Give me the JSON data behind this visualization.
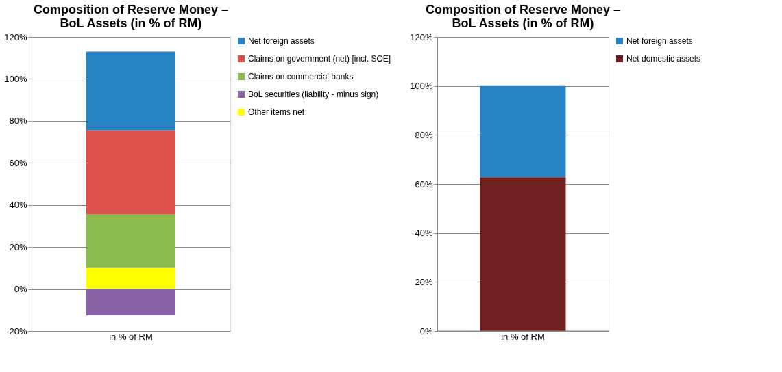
{
  "chart_data": [
    {
      "type": "bar",
      "title": "Composition of Reserve Money –\nBoL Assets (in % of RM)",
      "categories": [
        "in % of RM"
      ],
      "stacked": true,
      "series": [
        {
          "name": "Other items net",
          "color": "#ffff00",
          "values": [
            10
          ]
        },
        {
          "name": "BoL securities (liability - minus sign)",
          "color": "#8a63a6",
          "values": [
            -12.5
          ]
        },
        {
          "name": "Claims on commercial banks",
          "color": "#8cbb4d",
          "values": [
            25.5
          ]
        },
        {
          "name": "Claims on government (net) [incl. SOE]",
          "color": "#dc504c",
          "values": [
            40
          ]
        },
        {
          "name": "Net foreign assets",
          "color": "#2782c4",
          "values": [
            37.5
          ]
        }
      ],
      "ylim": [
        -20,
        120
      ],
      "yticks": [
        {
          "value": -20,
          "label": "-20%"
        },
        {
          "value": 0,
          "label": "0%"
        },
        {
          "value": 20,
          "label": "20%"
        },
        {
          "value": 40,
          "label": "40%"
        },
        {
          "value": 60,
          "label": "60%"
        },
        {
          "value": 80,
          "label": "80%"
        },
        {
          "value": 100,
          "label": "100%"
        },
        {
          "value": 120,
          "label": "120%"
        }
      ],
      "grid": "y",
      "legend": "right"
    },
    {
      "type": "bar",
      "title": "Composition of Reserve Money –\nBoL Assets (in % of RM)",
      "categories": [
        "in % of RM"
      ],
      "stacked": true,
      "series": [
        {
          "name": "Net domestic assets",
          "color": "#6f1f1e",
          "values": [
            62.7
          ]
        },
        {
          "name": "Net foreign assets",
          "color": "#2782c4",
          "values": [
            37.3
          ]
        }
      ],
      "ylim": [
        0,
        120
      ],
      "yticks": [
        {
          "value": 0,
          "label": "0%"
        },
        {
          "value": 20,
          "label": "20%"
        },
        {
          "value": 40,
          "label": "40%"
        },
        {
          "value": 60,
          "label": "60%"
        },
        {
          "value": 80,
          "label": "80%"
        },
        {
          "value": 100,
          "label": "100%"
        },
        {
          "value": 120,
          "label": "120%"
        }
      ],
      "grid": "y",
      "legend": "right"
    }
  ]
}
